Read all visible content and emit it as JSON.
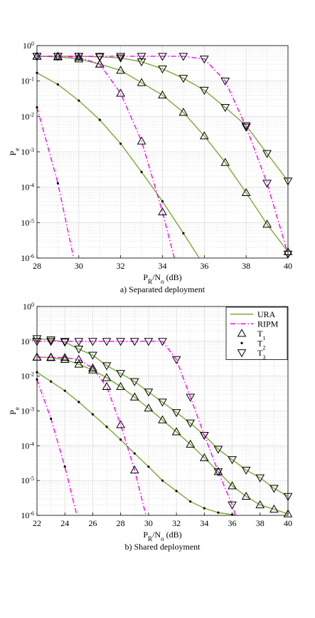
{
  "chart_data": [
    {
      "type": "line",
      "log_y": true,
      "grid": true,
      "minor_grid": true,
      "caption": "a) Separated deployment",
      "xlabel": [
        {
          "text": "P"
        },
        {
          "text": "R",
          "sub": true
        },
        {
          "text": "/N"
        },
        {
          "text": "o",
          "sub": true
        },
        {
          "text": "  (dB)"
        }
      ],
      "ylabel": [
        {
          "text": "P"
        },
        {
          "text": "e",
          "sub": true
        }
      ],
      "xlim": [
        28,
        40
      ],
      "xticks": [
        28,
        30,
        32,
        34,
        36,
        38,
        40
      ],
      "ylim": [
        1e-06,
        1
      ],
      "yticks": [
        {
          "value": 1e-06,
          "label": "10",
          "sup": "-6"
        },
        {
          "value": 1e-05,
          "label": "10",
          "sup": "-5"
        },
        {
          "value": 0.0001,
          "label": "10",
          "sup": "-4"
        },
        {
          "value": 0.001,
          "label": "10",
          "sup": "-3"
        },
        {
          "value": 0.01,
          "label": "10",
          "sup": "-2"
        },
        {
          "value": 0.1,
          "label": "10",
          "sup": "-1"
        },
        {
          "value": 1,
          "label": "10",
          "sup": "0"
        }
      ],
      "series": [
        {
          "color": "#77ac30",
          "line": "solid",
          "marker": "triangle-up",
          "x": [
            28,
            29,
            30,
            31,
            32,
            33,
            34,
            35,
            36,
            37,
            38,
            39,
            40
          ],
          "values": [
            0.5,
            0.48,
            0.42,
            0.3,
            0.2,
            0.09,
            0.04,
            0.013,
            0.0028,
            0.0005,
            7e-05,
            9e-06,
            1.5e-06
          ]
        },
        {
          "color": "#77ac30",
          "line": "solid",
          "marker": "dot",
          "x": [
            28,
            29,
            30,
            31,
            32,
            33,
            34,
            35,
            36
          ],
          "values": [
            0.17,
            0.08,
            0.028,
            0.008,
            0.0017,
            0.00027,
            4e-05,
            5e-06,
            6e-07
          ]
        },
        {
          "color": "#77ac30",
          "line": "solid",
          "marker": "triangle-down",
          "x": [
            28,
            29,
            30,
            31,
            32,
            33,
            34,
            35,
            36,
            37,
            38,
            39,
            40
          ],
          "values": [
            0.5,
            0.5,
            0.5,
            0.48,
            0.45,
            0.35,
            0.22,
            0.12,
            0.055,
            0.018,
            0.0055,
            0.0009,
            0.00015
          ]
        },
        {
          "color": "#ff00ff",
          "line": "dashdot",
          "marker": "triangle-up",
          "x": [
            28,
            29,
            30,
            31,
            32,
            33,
            34,
            35
          ],
          "values": [
            0.5,
            0.5,
            0.47,
            0.3,
            0.045,
            0.002,
            2e-05,
            1e-07
          ]
        },
        {
          "color": "#ff00ff",
          "line": "dashdot",
          "marker": "dot",
          "x": [
            28,
            29,
            30
          ],
          "values": [
            0.018,
            0.00013,
            2e-07
          ]
        },
        {
          "color": "#ff00ff",
          "line": "dashdot",
          "marker": "triangle-down",
          "x": [
            28,
            29,
            30,
            31,
            32,
            33,
            34,
            35,
            36,
            37,
            38,
            39,
            40
          ],
          "values": [
            0.5,
            0.5,
            0.5,
            0.5,
            0.5,
            0.5,
            0.5,
            0.5,
            0.42,
            0.1,
            0.005,
            0.00013,
            1.3e-06
          ]
        }
      ]
    },
    {
      "type": "line",
      "log_y": true,
      "grid": true,
      "minor_grid": true,
      "legend": "upper right",
      "caption": "b) Shared deployment",
      "xlabel": [
        {
          "text": "P"
        },
        {
          "text": "R",
          "sub": true
        },
        {
          "text": "/N"
        },
        {
          "text": "o",
          "sub": true
        },
        {
          "text": "  (dB)"
        }
      ],
      "ylabel": [
        {
          "text": "P"
        },
        {
          "text": "e",
          "sub": true
        }
      ],
      "xlim": [
        22,
        40
      ],
      "xticks": [
        22,
        24,
        26,
        28,
        30,
        32,
        34,
        36,
        38,
        40
      ],
      "ylim": [
        1e-06,
        1
      ],
      "yticks": [
        {
          "value": 1e-06,
          "label": "10",
          "sup": "-6"
        },
        {
          "value": 1e-05,
          "label": "10",
          "sup": "-5"
        },
        {
          "value": 0.0001,
          "label": "10",
          "sup": "-4"
        },
        {
          "value": 0.001,
          "label": "10",
          "sup": "-3"
        },
        {
          "value": 0.01,
          "label": "10",
          "sup": "-2"
        },
        {
          "value": 0.1,
          "label": "10",
          "sup": "-1"
        },
        {
          "value": 1,
          "label": "10",
          "sup": "0"
        }
      ],
      "legend_entries": [
        {
          "label": "URA",
          "color": "#77ac30",
          "line": "solid"
        },
        {
          "label": "RIPM",
          "color": "#ff00ff",
          "line": "dashdot"
        },
        {
          "label": "T",
          "sub": "1",
          "marker": "triangle-up"
        },
        {
          "label": "T",
          "sub": "2",
          "marker": "dot"
        },
        {
          "label": "T",
          "sub": "3",
          "marker": "triangle-down"
        }
      ],
      "series": [
        {
          "color": "#77ac30",
          "line": "solid",
          "marker": "triangle-up",
          "x": [
            22,
            23,
            24,
            25,
            26,
            27,
            28,
            29,
            30,
            31,
            32,
            33,
            34,
            35,
            36,
            37,
            38,
            39,
            40
          ],
          "values": [
            0.035,
            0.034,
            0.03,
            0.022,
            0.015,
            0.009,
            0.005,
            0.0025,
            0.0012,
            0.00055,
            0.00025,
            0.00011,
            4.5e-05,
            1.8e-05,
            7e-06,
            3.5e-06,
            2e-06,
            1.5e-06,
            1.1e-06
          ]
        },
        {
          "color": "#77ac30",
          "line": "solid",
          "marker": "dot",
          "x": [
            22,
            23,
            24,
            25,
            26,
            27,
            28,
            29,
            30,
            31,
            32,
            33,
            34,
            35,
            36,
            37
          ],
          "values": [
            0.013,
            0.007,
            0.0038,
            0.0018,
            0.0008,
            0.00035,
            0.00015,
            6e-05,
            2.5e-05,
            1e-05,
            5e-06,
            2.5e-06,
            1.6e-06,
            1.2e-06,
            1.05e-06,
            9e-07
          ]
        },
        {
          "color": "#77ac30",
          "line": "solid",
          "marker": "triangle-down",
          "x": [
            22,
            23,
            24,
            25,
            26,
            27,
            28,
            29,
            30,
            31,
            32,
            33,
            34,
            35,
            36,
            37,
            38,
            39,
            40
          ],
          "values": [
            0.12,
            0.11,
            0.095,
            0.06,
            0.04,
            0.02,
            0.012,
            0.007,
            0.0035,
            0.0018,
            0.0009,
            0.00045,
            0.0002,
            8e-05,
            4e-05,
            2e-05,
            1.2e-05,
            6e-06,
            3.5e-06
          ]
        },
        {
          "color": "#ff00ff",
          "line": "dashdot",
          "marker": "triangle-up",
          "x": [
            22,
            23,
            24,
            25,
            26,
            27,
            28,
            29,
            30
          ],
          "values": [
            0.035,
            0.035,
            0.034,
            0.03,
            0.017,
            0.005,
            0.0004,
            2e-05,
            5e-07
          ]
        },
        {
          "color": "#ff00ff",
          "line": "dashdot",
          "marker": "dot",
          "x": [
            22,
            23,
            24,
            25
          ],
          "values": [
            0.008,
            0.0006,
            2.5e-05,
            6e-07
          ]
        },
        {
          "color": "#ff00ff",
          "line": "dashdot",
          "marker": "triangle-down",
          "x": [
            22,
            23,
            24,
            25,
            26,
            27,
            28,
            29,
            30,
            31,
            32,
            33,
            34,
            35,
            36,
            37
          ],
          "values": [
            0.1,
            0.1,
            0.1,
            0.1,
            0.1,
            0.1,
            0.1,
            0.1,
            0.1,
            0.1,
            0.03,
            0.0025,
            0.0002,
            1.8e-05,
            2e-06,
            1e-07
          ]
        }
      ]
    }
  ]
}
